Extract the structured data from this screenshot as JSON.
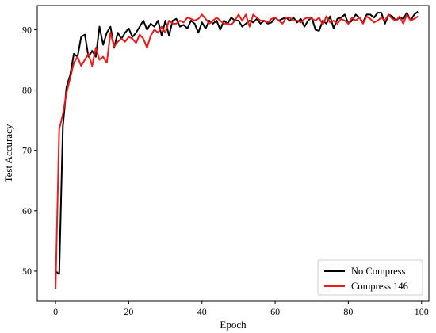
{
  "chart_data": {
    "type": "line",
    "title": "",
    "xlabel": "Epoch",
    "ylabel": "Test Accuracy",
    "xlim": [
      -5,
      102
    ],
    "ylim": [
      45,
      94
    ],
    "xticks": [
      0,
      20,
      40,
      60,
      80,
      100
    ],
    "yticks": [
      50,
      60,
      70,
      80,
      90
    ],
    "grid": false,
    "legend": "lower-right",
    "series": [
      {
        "name": "No Compress",
        "color": "#000000",
        "x": [
          0,
          1,
          2,
          3,
          4,
          5,
          6,
          7,
          8,
          9,
          10,
          11,
          12,
          13,
          14,
          15,
          16,
          17,
          18,
          19,
          20,
          21,
          22,
          23,
          24,
          25,
          26,
          27,
          28,
          29,
          30,
          31,
          32,
          33,
          34,
          35,
          36,
          37,
          38,
          39,
          40,
          41,
          42,
          43,
          44,
          45,
          46,
          47,
          48,
          49,
          50,
          51,
          52,
          53,
          54,
          55,
          56,
          57,
          58,
          59,
          60,
          61,
          62,
          63,
          64,
          65,
          66,
          67,
          68,
          69,
          70,
          71,
          72,
          73,
          74,
          75,
          76,
          77,
          78,
          79,
          80,
          81,
          82,
          83,
          84,
          85,
          86,
          87,
          88,
          89,
          90,
          91,
          92,
          93,
          94,
          95,
          96,
          97,
          98,
          99
        ],
        "y": [
          50.0,
          49.5,
          74.0,
          80.5,
          82.5,
          86.0,
          85.5,
          88.8,
          89.2,
          85.5,
          86.5,
          85.5,
          90.5,
          87.5,
          89.5,
          90.5,
          87.0,
          89.5,
          88.5,
          89.5,
          90.2,
          88.8,
          89.5,
          90.5,
          91.5,
          90.0,
          91.0,
          90.5,
          91.5,
          89.0,
          91.5,
          89.0,
          91.5,
          91.8,
          90.5,
          90.8,
          90.2,
          91.5,
          91.0,
          89.5,
          91.2,
          90.2,
          91.5,
          91.0,
          91.5,
          90.0,
          91.5,
          91.0,
          92.0,
          91.5,
          91.5,
          90.5,
          91.0,
          91.5,
          91.2,
          91.8,
          91.0,
          91.5,
          91.0,
          91.2,
          92.0,
          91.5,
          91.8,
          92.0,
          91.5,
          92.0,
          91.2,
          91.8,
          90.5,
          91.5,
          92.0,
          90.0,
          89.8,
          91.5,
          91.0,
          92.2,
          90.2,
          91.8,
          92.0,
          92.5,
          91.0,
          91.5,
          92.5,
          92.0,
          91.2,
          92.5,
          92.5,
          92.0,
          92.8,
          92.8,
          91.0,
          92.5,
          92.2,
          91.5,
          92.0,
          91.8,
          92.8,
          91.5,
          92.5,
          93.0
        ]
      },
      {
        "name": "Compress 146",
        "color": "#ee1a1a",
        "x": [
          0,
          1,
          2,
          3,
          4,
          5,
          6,
          7,
          8,
          9,
          10,
          11,
          12,
          13,
          14,
          15,
          16,
          17,
          18,
          19,
          20,
          21,
          22,
          23,
          24,
          25,
          26,
          27,
          28,
          29,
          30,
          31,
          32,
          33,
          34,
          35,
          36,
          37,
          38,
          39,
          40,
          41,
          42,
          43,
          44,
          45,
          46,
          47,
          48,
          49,
          50,
          51,
          52,
          53,
          54,
          55,
          56,
          57,
          58,
          59,
          60,
          61,
          62,
          63,
          64,
          65,
          66,
          67,
          68,
          69,
          70,
          71,
          72,
          73,
          74,
          75,
          76,
          77,
          78,
          79,
          80,
          81,
          82,
          83,
          84,
          85,
          86,
          87,
          88,
          89,
          90,
          91,
          92,
          93,
          94,
          95,
          96,
          97,
          98,
          99
        ],
        "y": [
          47.0,
          73.5,
          76.0,
          79.5,
          82.0,
          84.5,
          85.5,
          84.0,
          85.0,
          86.0,
          84.0,
          87.0,
          85.0,
          85.5,
          84.5,
          89.5,
          87.2,
          88.0,
          88.5,
          88.0,
          88.8,
          88.5,
          87.8,
          89.2,
          88.5,
          87.0,
          89.0,
          90.0,
          89.5,
          90.5,
          89.5,
          91.5,
          91.0,
          91.0,
          91.5,
          91.2,
          92.0,
          91.8,
          91.5,
          91.8,
          92.5,
          91.8,
          91.0,
          91.5,
          92.0,
          91.5,
          91.0,
          91.0,
          90.8,
          91.5,
          92.5,
          91.5,
          92.5,
          90.5,
          92.5,
          92.0,
          91.5,
          91.5,
          91.2,
          91.8,
          92.0,
          91.5,
          91.0,
          92.0,
          92.0,
          91.5,
          91.5,
          91.2,
          91.8,
          92.0,
          91.8,
          91.5,
          92.0,
          90.8,
          92.2,
          91.2,
          91.5,
          91.0,
          91.8,
          91.5,
          91.0,
          92.0,
          91.5,
          92.0,
          91.0,
          92.2,
          91.8,
          91.2,
          91.5,
          92.0,
          91.5,
          92.5,
          91.8,
          91.5,
          92.2,
          91.0,
          92.5,
          91.5,
          91.8,
          92.2
        ]
      }
    ]
  }
}
